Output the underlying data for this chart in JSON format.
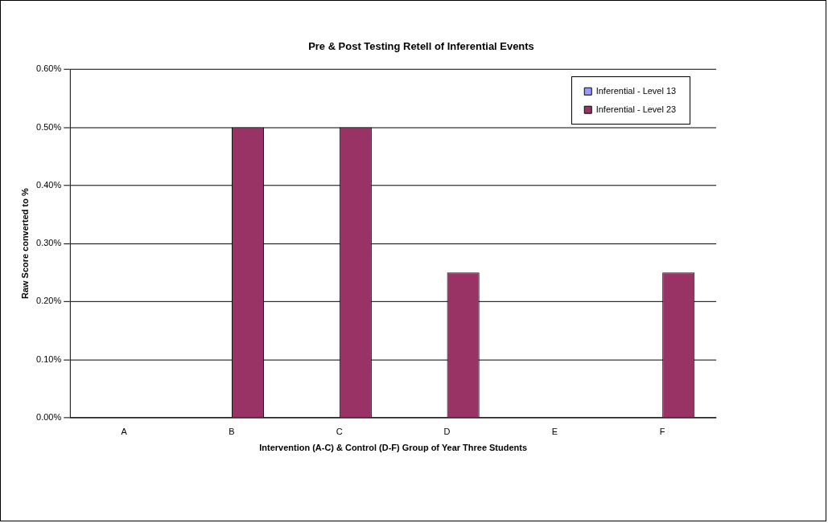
{
  "chart_data": {
    "type": "bar",
    "title": "Pre & Post Testing Retell of Inferential Events",
    "xlabel": "Intervention (A-C) & Control (D-F) Group of Year Three Students",
    "ylabel": "Raw Score converted to %",
    "categories": [
      "A",
      "B",
      "C",
      "D",
      "E",
      "F"
    ],
    "series": [
      {
        "name": "Inferential - Level 13",
        "color": "#9999ff",
        "values": [
          0,
          0,
          0,
          0,
          0,
          0
        ]
      },
      {
        "name": "Inferential - Level 23",
        "color": "#993366",
        "values": [
          0,
          0.5,
          0.5,
          0.25,
          0,
          0.25
        ]
      }
    ],
    "ylim": [
      0,
      0.6
    ],
    "yticks": [
      {
        "value": 0,
        "label": "0.00%"
      },
      {
        "value": 0.1,
        "label": "0.10%"
      },
      {
        "value": 0.2,
        "label": "0.20%"
      },
      {
        "value": 0.3,
        "label": "0.30%"
      },
      {
        "value": 0.4,
        "label": "0.40%"
      },
      {
        "value": 0.5,
        "label": "0.50%"
      },
      {
        "value": 0.6,
        "label": "0.60%"
      }
    ],
    "grid": "y",
    "legend": "top right"
  }
}
